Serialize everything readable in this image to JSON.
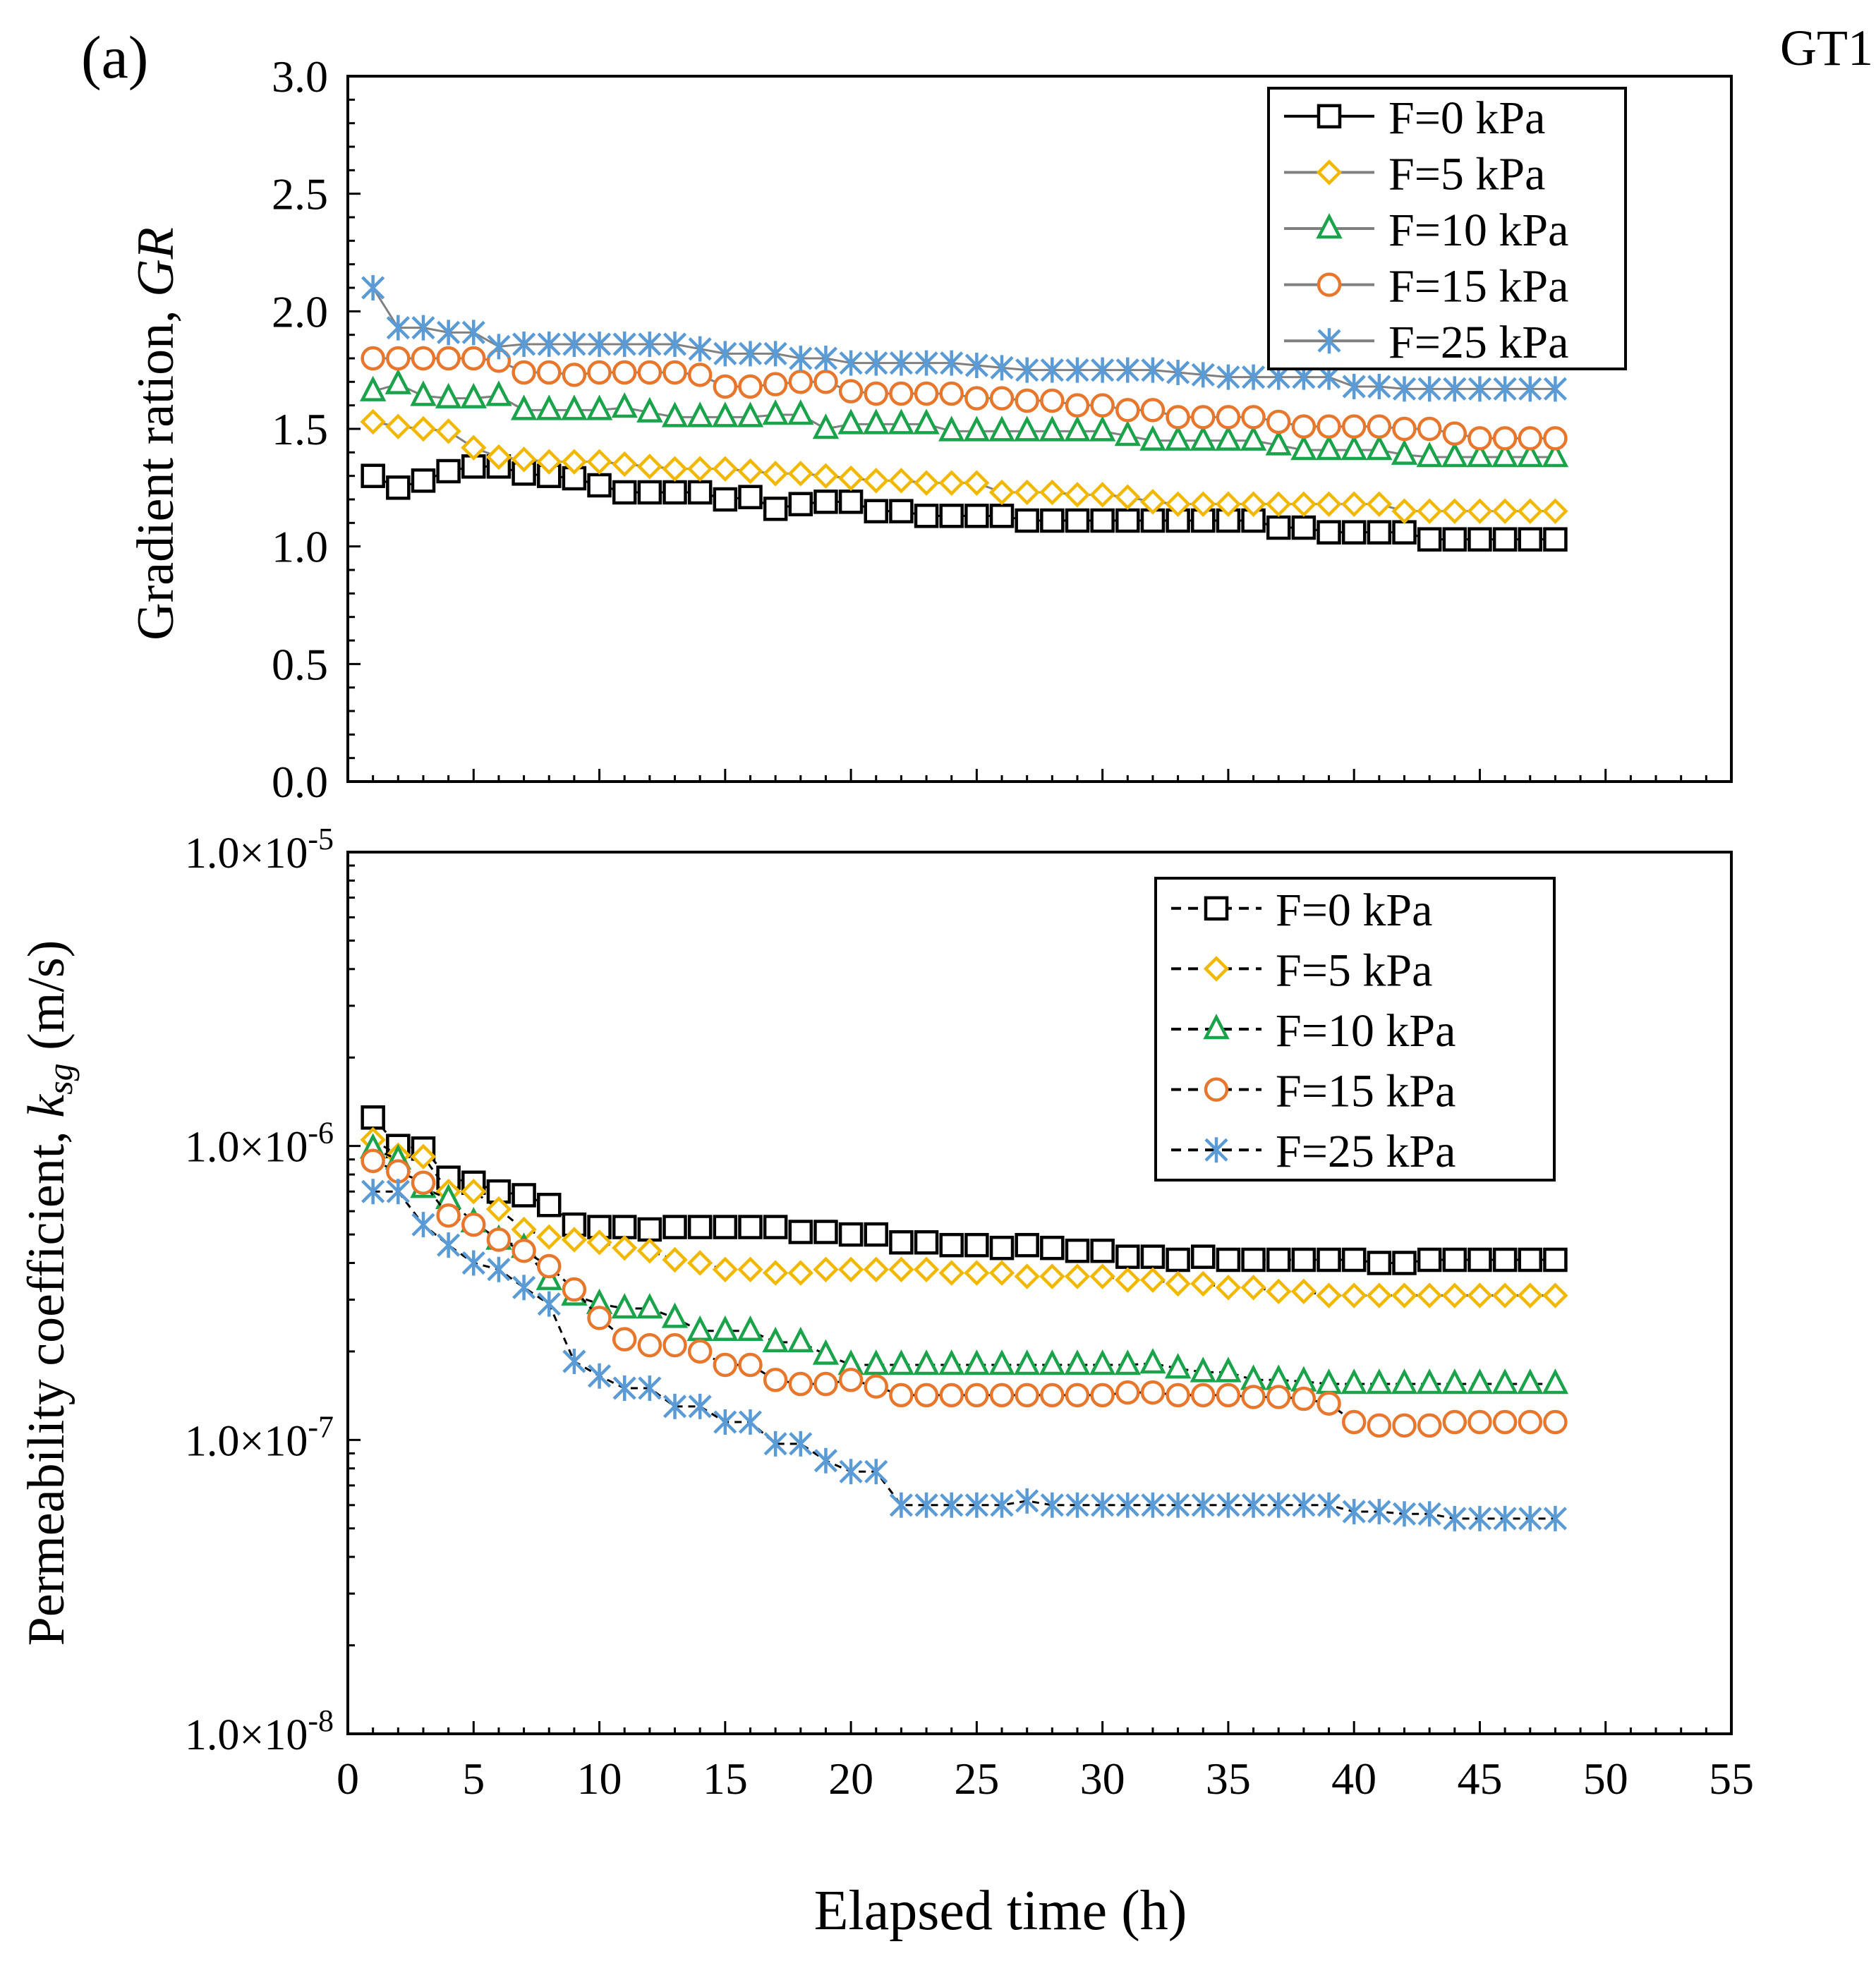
{
  "panel_label": "(a)",
  "corner_label": "GT1",
  "colors": {
    "F=0 kPa": "#000000",
    "F=5 kPa": "#F2B800",
    "F=10 kPa": "#1AA34A",
    "F=15 kPa": "#E8772E",
    "F=25 kPa": "#5B9BD5"
  },
  "chart_data": [
    {
      "id": "top",
      "type": "line",
      "ylabel": "Gradient ration, GR",
      "ylabel_plain": "Gradient ration, ",
      "ylabel_italic": "GR",
      "ylim": [
        0,
        3
      ],
      "xlim": [
        0,
        55
      ],
      "yticks": [
        "0.0",
        "0.5",
        "1.0",
        "1.5",
        "2.0",
        "2.5",
        "3.0"
      ],
      "ytick_values": [
        0,
        0.5,
        1.0,
        1.5,
        2.0,
        2.5,
        3.0
      ],
      "legend_position": "top-right",
      "line_style": "solid",
      "series": [
        {
          "name": "F=0 kPa",
          "marker": "square",
          "values": [
            1.3,
            1.25,
            1.28,
            1.32,
            1.34,
            1.34,
            1.31,
            1.3,
            1.29,
            1.26,
            1.23,
            1.23,
            1.23,
            1.23,
            1.2,
            1.21,
            1.16,
            1.18,
            1.19,
            1.19,
            1.15,
            1.15,
            1.13,
            1.13,
            1.13,
            1.13,
            1.11,
            1.11,
            1.11,
            1.11,
            1.11,
            1.11,
            1.11,
            1.11,
            1.11,
            1.11,
            1.08,
            1.08,
            1.06,
            1.06,
            1.06,
            1.06,
            1.03,
            1.03,
            1.03,
            1.03,
            1.03,
            1.03
          ]
        },
        {
          "name": "F=5 kPa",
          "marker": "diamond",
          "values": [
            1.53,
            1.51,
            1.5,
            1.49,
            1.42,
            1.38,
            1.37,
            1.36,
            1.36,
            1.36,
            1.35,
            1.34,
            1.33,
            1.33,
            1.33,
            1.32,
            1.31,
            1.31,
            1.3,
            1.29,
            1.28,
            1.28,
            1.27,
            1.27,
            1.27,
            1.23,
            1.23,
            1.23,
            1.22,
            1.22,
            1.21,
            1.19,
            1.18,
            1.18,
            1.18,
            1.18,
            1.18,
            1.18,
            1.18,
            1.18,
            1.18,
            1.15,
            1.15,
            1.15,
            1.15,
            1.15,
            1.15,
            1.15
          ]
        },
        {
          "name": "F=10 kPa",
          "marker": "triangle",
          "values": [
            1.66,
            1.69,
            1.64,
            1.63,
            1.63,
            1.64,
            1.58,
            1.58,
            1.58,
            1.58,
            1.59,
            1.57,
            1.55,
            1.55,
            1.55,
            1.55,
            1.56,
            1.56,
            1.5,
            1.52,
            1.52,
            1.52,
            1.52,
            1.49,
            1.49,
            1.49,
            1.49,
            1.49,
            1.49,
            1.49,
            1.47,
            1.45,
            1.45,
            1.45,
            1.45,
            1.45,
            1.43,
            1.41,
            1.41,
            1.41,
            1.41,
            1.39,
            1.38,
            1.38,
            1.38,
            1.38,
            1.38,
            1.38
          ]
        },
        {
          "name": "F=15 kPa",
          "marker": "circle",
          "values": [
            1.8,
            1.8,
            1.8,
            1.8,
            1.8,
            1.79,
            1.74,
            1.74,
            1.73,
            1.74,
            1.74,
            1.74,
            1.74,
            1.73,
            1.68,
            1.68,
            1.69,
            1.7,
            1.7,
            1.66,
            1.65,
            1.65,
            1.65,
            1.65,
            1.63,
            1.63,
            1.62,
            1.62,
            1.6,
            1.6,
            1.58,
            1.58,
            1.55,
            1.55,
            1.55,
            1.55,
            1.53,
            1.51,
            1.51,
            1.51,
            1.51,
            1.5,
            1.5,
            1.48,
            1.46,
            1.46,
            1.46,
            1.46
          ]
        },
        {
          "name": "F=25 kPa",
          "marker": "star",
          "values": [
            2.1,
            1.93,
            1.93,
            1.91,
            1.91,
            1.85,
            1.86,
            1.86,
            1.86,
            1.86,
            1.86,
            1.86,
            1.86,
            1.84,
            1.82,
            1.82,
            1.82,
            1.8,
            1.8,
            1.78,
            1.78,
            1.78,
            1.78,
            1.78,
            1.77,
            1.76,
            1.75,
            1.75,
            1.75,
            1.75,
            1.75,
            1.75,
            1.74,
            1.73,
            1.72,
            1.72,
            1.72,
            1.72,
            1.72,
            1.68,
            1.68,
            1.67,
            1.67,
            1.67,
            1.67,
            1.67,
            1.67,
            1.67
          ]
        }
      ],
      "x": [
        1,
        2,
        3,
        4,
        5,
        6,
        7,
        8,
        9,
        10,
        11,
        12,
        13,
        14,
        15,
        16,
        17,
        18,
        19,
        20,
        21,
        22,
        23,
        24,
        25,
        26,
        27,
        28,
        29,
        30,
        31,
        32,
        33,
        34,
        35,
        36,
        37,
        38,
        39,
        40,
        41,
        42,
        43,
        44,
        45,
        46,
        47,
        48
      ]
    },
    {
      "id": "bottom",
      "type": "line",
      "yscale": "log",
      "ylabel_plain": "Permeability  coefficient, ",
      "ylabel_italic": "k",
      "ylabel_sub": "sg",
      "ylabel_units": " (m/s)",
      "ylim": [
        1e-08,
        1e-05
      ],
      "xlim": [
        0,
        55
      ],
      "xlabel": "Elapsed time (h)",
      "xticks": [
        "0",
        "5",
        "10",
        "15",
        "20",
        "25",
        "30",
        "35",
        "40",
        "45",
        "50",
        "55"
      ],
      "xtick_values": [
        0,
        5,
        10,
        15,
        20,
        25,
        30,
        35,
        40,
        45,
        50,
        55
      ],
      "yticks": [
        {
          "mant": "1.0×10",
          "exp": "-8",
          "value": 1e-08
        },
        {
          "mant": "1.0×10",
          "exp": "-7",
          "value": 1e-07
        },
        {
          "mant": "1.0×10",
          "exp": "-6",
          "value": 1e-06
        },
        {
          "mant": "1.0×10",
          "exp": "-5",
          "value": 1e-05
        }
      ],
      "legend_position": "upper-right",
      "line_style": "dashed",
      "series": [
        {
          "name": "F=0 kPa",
          "marker": "square",
          "values": [
            1.25e-06,
            1e-06,
            9.8e-07,
            7.8e-07,
            7.5e-07,
            7e-07,
            6.8e-07,
            6.3e-07,
            5.4e-07,
            5.3e-07,
            5.3e-07,
            5.2e-07,
            5.3e-07,
            5.3e-07,
            5.3e-07,
            5.3e-07,
            5.3e-07,
            5.1e-07,
            5.1e-07,
            5e-07,
            5e-07,
            4.7e-07,
            4.7e-07,
            4.6e-07,
            4.6e-07,
            4.5e-07,
            4.6e-07,
            4.5e-07,
            4.4e-07,
            4.4e-07,
            4.2e-07,
            4.2e-07,
            4.1e-07,
            4.2e-07,
            4.1e-07,
            4.1e-07,
            4.1e-07,
            4.1e-07,
            4.1e-07,
            4.1e-07,
            4e-07,
            4e-07,
            4.1e-07,
            4.1e-07,
            4.1e-07,
            4.1e-07,
            4.1e-07,
            4.1e-07
          ]
        },
        {
          "name": "F=5 kPa",
          "marker": "diamond",
          "values": [
            1.05e-06,
            9.3e-07,
            9.2e-07,
            7e-07,
            7e-07,
            6.1e-07,
            5.2e-07,
            4.9e-07,
            4.8e-07,
            4.7e-07,
            4.5e-07,
            4.4e-07,
            4.1e-07,
            4e-07,
            3.8e-07,
            3.8e-07,
            3.7e-07,
            3.7e-07,
            3.8e-07,
            3.8e-07,
            3.8e-07,
            3.8e-07,
            3.8e-07,
            3.7e-07,
            3.7e-07,
            3.7e-07,
            3.6e-07,
            3.6e-07,
            3.6e-07,
            3.6e-07,
            3.5e-07,
            3.5e-07,
            3.4e-07,
            3.4e-07,
            3.3e-07,
            3.3e-07,
            3.2e-07,
            3.2e-07,
            3.1e-07,
            3.1e-07,
            3.1e-07,
            3.1e-07,
            3.1e-07,
            3.1e-07,
            3.1e-07,
            3.1e-07,
            3.1e-07,
            3.1e-07
          ]
        },
        {
          "name": "F=10 kPa",
          "marker": "triangle",
          "values": [
            9.8e-07,
            9e-07,
            7.2e-07,
            6.6e-07,
            5.5e-07,
            4.8e-07,
            4.5e-07,
            3.5e-07,
            3.1e-07,
            2.9e-07,
            2.8e-07,
            2.8e-07,
            2.6e-07,
            2.35e-07,
            2.35e-07,
            2.35e-07,
            2.15e-07,
            2.15e-07,
            1.95e-07,
            1.8e-07,
            1.8e-07,
            1.8e-07,
            1.8e-07,
            1.8e-07,
            1.8e-07,
            1.8e-07,
            1.8e-07,
            1.8e-07,
            1.8e-07,
            1.8e-07,
            1.8e-07,
            1.82e-07,
            1.75e-07,
            1.7e-07,
            1.7e-07,
            1.6e-07,
            1.6e-07,
            1.58e-07,
            1.55e-07,
            1.55e-07,
            1.55e-07,
            1.55e-07,
            1.55e-07,
            1.55e-07,
            1.55e-07,
            1.55e-07,
            1.55e-07,
            1.55e-07
          ]
        },
        {
          "name": "F=15 kPa",
          "marker": "circle",
          "values": [
            8.9e-07,
            8.2e-07,
            7.5e-07,
            5.8e-07,
            5.4e-07,
            4.8e-07,
            4.4e-07,
            3.9e-07,
            3.25e-07,
            2.6e-07,
            2.2e-07,
            2.1e-07,
            2.1e-07,
            2e-07,
            1.8e-07,
            1.8e-07,
            1.6e-07,
            1.55e-07,
            1.55e-07,
            1.6e-07,
            1.52e-07,
            1.42e-07,
            1.42e-07,
            1.42e-07,
            1.42e-07,
            1.42e-07,
            1.42e-07,
            1.42e-07,
            1.42e-07,
            1.42e-07,
            1.45e-07,
            1.45e-07,
            1.42e-07,
            1.42e-07,
            1.42e-07,
            1.4e-07,
            1.4e-07,
            1.38e-07,
            1.33e-07,
            1.15e-07,
            1.12e-07,
            1.12e-07,
            1.12e-07,
            1.15e-07,
            1.15e-07,
            1.15e-07,
            1.15e-07,
            1.15e-07
          ]
        },
        {
          "name": "F=25 kPa",
          "marker": "star",
          "values": [
            7e-07,
            7e-07,
            5.4e-07,
            4.6e-07,
            4e-07,
            3.8e-07,
            3.3e-07,
            2.9e-07,
            1.85e-07,
            1.65e-07,
            1.5e-07,
            1.5e-07,
            1.3e-07,
            1.3e-07,
            1.15e-07,
            1.15e-07,
            9.7e-08,
            9.7e-08,
            8.5e-08,
            7.8e-08,
            7.8e-08,
            6e-08,
            6e-08,
            6e-08,
            6e-08,
            6e-08,
            6.2e-08,
            6e-08,
            6e-08,
            6e-08,
            6e-08,
            6e-08,
            6e-08,
            6e-08,
            6e-08,
            6e-08,
            6e-08,
            6e-08,
            6e-08,
            5.7e-08,
            5.7e-08,
            5.6e-08,
            5.6e-08,
            5.4e-08,
            5.4e-08,
            5.4e-08,
            5.4e-08,
            5.4e-08
          ]
        }
      ],
      "x": [
        1,
        2,
        3,
        4,
        5,
        6,
        7,
        8,
        9,
        10,
        11,
        12,
        13,
        14,
        15,
        16,
        17,
        18,
        19,
        20,
        21,
        22,
        23,
        24,
        25,
        26,
        27,
        28,
        29,
        30,
        31,
        32,
        33,
        34,
        35,
        36,
        37,
        38,
        39,
        40,
        41,
        42,
        43,
        44,
        45,
        46,
        47,
        48
      ]
    }
  ]
}
